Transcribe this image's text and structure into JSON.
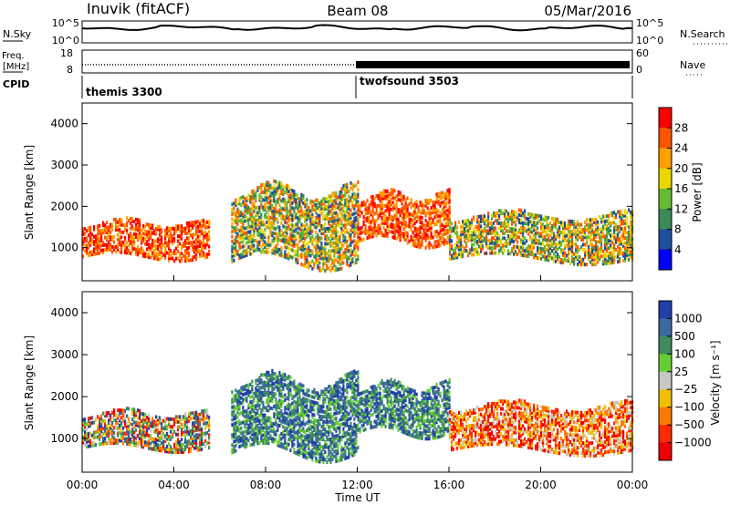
{
  "header": {
    "radar": "Inuvik (fitACF)",
    "beam": "Beam 08",
    "date": "05/Mar/2016"
  },
  "noise_panel": {
    "left_label": "N.Sky",
    "right_label": "N.Search",
    "left_ticks": [
      "10^5",
      "10^0"
    ],
    "right_ticks": [
      "10^5",
      "10^0"
    ],
    "y_scale": "log",
    "ylim": [
      1,
      100000
    ]
  },
  "freq_panel": {
    "left_label_line1": "Freq.",
    "left_label_line2": "[MHz]",
    "right_label": "Nave",
    "left_ticks": [
      "18",
      "8"
    ],
    "right_ticks": [
      "60",
      "0"
    ],
    "ylim": [
      8,
      18
    ]
  },
  "cpid_panel": {
    "label": "CPID",
    "programs": [
      {
        "name": "themis 3300",
        "start_hour": 0
      },
      {
        "name": "twofsound 3503",
        "start_hour": 12
      }
    ]
  },
  "x_axis": {
    "title": "Time UT",
    "ticks": [
      "00:00",
      "04:00",
      "08:00",
      "12:00",
      "16:00",
      "20:00",
      "00:00"
    ]
  },
  "range_ticks": [
    "4000",
    "3000",
    "2000",
    "1000"
  ],
  "chart_data": [
    {
      "type": "heatmap",
      "parameter": "Power",
      "ylabel": "Slant Range [km]",
      "xlabel": "",
      "xlim": [
        "00:00",
        "00:00"
      ],
      "ylim": [
        200,
        4500
      ],
      "colorbar_label": "Power [dB]",
      "colorbar_ticks": [
        "28",
        "24",
        "20",
        "16",
        "12",
        "8",
        "4"
      ],
      "colorbar_colors": [
        "#ff0000",
        "#ff5500",
        "#ff9f00",
        "#e8d800",
        "#66bb33",
        "#3a8a5a",
        "#1f4fa0",
        "#0000ff"
      ],
      "regions": [
        {
          "start_hour": 0.0,
          "end_hour": 5.5,
          "range_km": [
            600,
            1700
          ],
          "level": "high"
        },
        {
          "start_hour": 6.5,
          "end_hour": 12.0,
          "range_km": [
            300,
            2600
          ],
          "level": "mid"
        },
        {
          "start_hour": 12.0,
          "end_hour": 16.0,
          "range_km": [
            900,
            2400
          ],
          "level": "high"
        },
        {
          "start_hour": 16.0,
          "end_hour": 24.0,
          "range_km": [
            500,
            1900
          ],
          "level": "mid"
        }
      ]
    },
    {
      "type": "heatmap",
      "parameter": "Velocity",
      "ylabel": "Slant Range [km]",
      "xlabel": "",
      "xlim": [
        "00:00",
        "00:00"
      ],
      "ylim": [
        200,
        4500
      ],
      "colorbar_label": "Velocity [m s⁻¹]",
      "colorbar_ticks": [
        "1000",
        "500",
        "100",
        "25",
        "−25",
        "−100",
        "−500",
        "−1000"
      ],
      "colorbar_colors": [
        "#2340a8",
        "#3a6aa0",
        "#3f8a5f",
        "#66cc33",
        "#c8c8c0",
        "#f0c000",
        "#ff7a00",
        "#ff2a00",
        "#ee0000"
      ],
      "regions": [
        {
          "start_hour": 0.0,
          "end_hour": 5.5,
          "range_km": [
            600,
            1700
          ],
          "level": "mixed"
        },
        {
          "start_hour": 6.5,
          "end_hour": 12.0,
          "range_km": [
            300,
            2600
          ],
          "level": "positive"
        },
        {
          "start_hour": 12.0,
          "end_hour": 16.0,
          "range_km": [
            900,
            2400
          ],
          "level": "positive"
        },
        {
          "start_hour": 16.0,
          "end_hour": 24.0,
          "range_km": [
            500,
            1900
          ],
          "level": "negative"
        }
      ]
    }
  ]
}
